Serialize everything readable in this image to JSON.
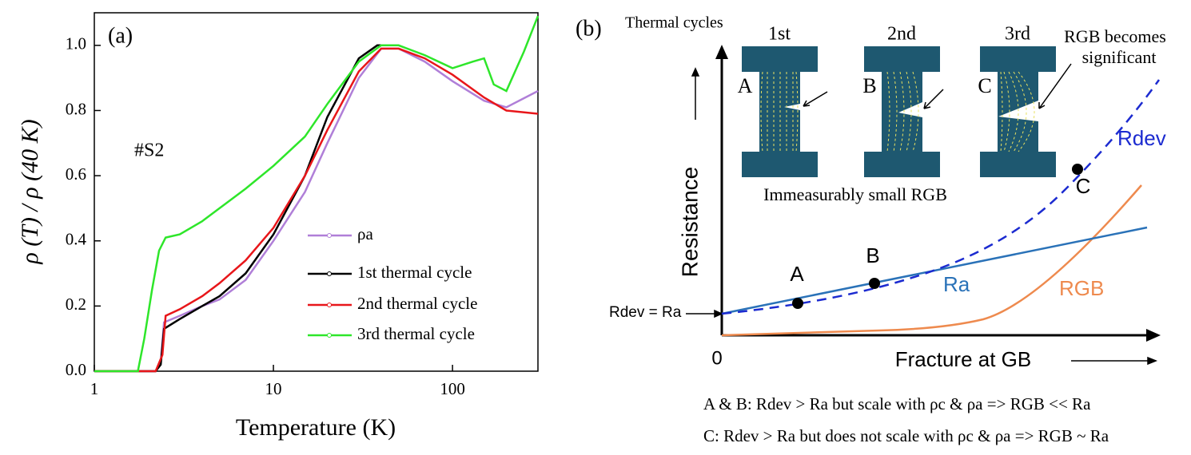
{
  "chart_data": {
    "type": "line",
    "annotations": [
      "(a)",
      "#S2"
    ],
    "xlabel": "Temperature (K)",
    "ylabel": "ρ (T) / ρ (40 K)",
    "xscale": "log",
    "xlim": [
      1,
      300
    ],
    "xticks": [
      1,
      10,
      100
    ],
    "ylim": [
      0,
      1.1
    ],
    "yticks": [
      {
        "value": 0,
        "label": "0.0"
      },
      0.2,
      0.4,
      0.6,
      0.8,
      {
        "value": 1,
        "label": "1.0"
      }
    ],
    "legend": "lower right",
    "series": [
      {
        "name": "ρa",
        "color": "#b07fd8",
        "x": [
          1,
          2.2,
          2.35,
          2.45,
          3,
          4,
          5,
          7,
          10,
          15,
          20,
          30,
          40,
          50,
          70,
          100,
          150,
          200,
          300
        ],
        "values": [
          0,
          0,
          0.03,
          0.15,
          0.17,
          0.2,
          0.22,
          0.28,
          0.4,
          0.55,
          0.7,
          0.9,
          0.99,
          0.99,
          0.95,
          0.89,
          0.83,
          0.81,
          0.86
        ]
      },
      {
        "name": "1st thermal cycle",
        "color": "#000000",
        "x": [
          1,
          2.2,
          2.35,
          2.45,
          3,
          4,
          5,
          7,
          10,
          15,
          20,
          30,
          38,
          40
        ],
        "values": [
          0,
          0,
          0.02,
          0.13,
          0.16,
          0.2,
          0.23,
          0.3,
          0.42,
          0.6,
          0.78,
          0.96,
          1.0,
          1.0
        ]
      },
      {
        "name": "2nd thermal cycle",
        "color": "#e8161a",
        "x": [
          1,
          2.2,
          2.4,
          2.5,
          3,
          4,
          5,
          7,
          10,
          15,
          20,
          30,
          40,
          50,
          70,
          100,
          150,
          200,
          300
        ],
        "values": [
          0,
          0,
          0.05,
          0.17,
          0.19,
          0.23,
          0.27,
          0.34,
          0.44,
          0.6,
          0.74,
          0.92,
          0.99,
          0.99,
          0.96,
          0.91,
          0.84,
          0.8,
          0.79
        ]
      },
      {
        "name": "3rd thermal cycle",
        "color": "#2ee62a",
        "x": [
          1,
          1.75,
          1.9,
          2.1,
          2.3,
          2.5,
          3,
          4,
          5,
          7,
          10,
          15,
          20,
          30,
          40,
          50,
          70,
          100,
          130,
          150,
          170,
          200,
          250,
          300
        ],
        "values": [
          0,
          0,
          0.1,
          0.25,
          0.37,
          0.41,
          0.42,
          0.46,
          0.5,
          0.56,
          0.63,
          0.72,
          0.82,
          0.95,
          1.0,
          1.0,
          0.97,
          0.93,
          0.95,
          0.96,
          0.88,
          0.86,
          0.98,
          1.09
        ]
      }
    ]
  },
  "diagram": {
    "panel_label": "(b)",
    "header": "Thermal cycles",
    "cycles": [
      "1st",
      "2nd",
      "3rd"
    ],
    "specimens": [
      "A",
      "B",
      "C"
    ],
    "note_significant": [
      "RGB becomes",
      "significant"
    ],
    "note_small": "Immeasurably small RGB",
    "y_axis": "Resistance",
    "x_axis": "Fracture at GB",
    "origin": "0",
    "start_label": "Rdev = Ra",
    "curves": [
      "Rdev",
      "Ra",
      "RGB"
    ],
    "points": [
      "A",
      "B",
      "C"
    ],
    "captions": [
      "A & B: Rdev > Ra but scale with ρc & ρa => RGB << Ra",
      "C: Rdev > Ra but does not scale with ρc & ρa => RGB ~ Ra"
    ]
  }
}
